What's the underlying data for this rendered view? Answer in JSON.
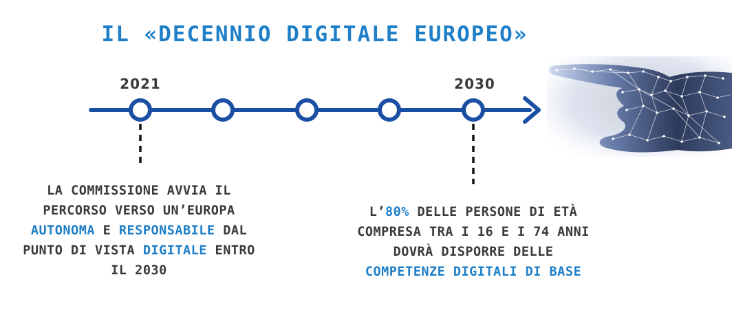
{
  "title": "IL «DECENNIO DIGITALE EUROPEO»",
  "timeline": {
    "years": [
      "2021",
      "2030"
    ],
    "milestone_count": 5
  },
  "left_text": {
    "part1": "LA COMMISSIONE AVVIA IL PERCORSO VERSO UN’EUROPA ",
    "hl1": "AUTONOMA",
    "part2": " E ",
    "hl2": "RESPONSABILE",
    "part3": " DAL PUNTO DI VISTA ",
    "hl3": "DIGITALE",
    "part4": " ENTRO IL 2030"
  },
  "right_text": {
    "part1": "L’",
    "hl1": "80%",
    "part2": " DELLE PERSONE DI ETÀ COMPRESA TRA I 16 E I 74 ANNI DOVRÀ DISPORRE DELLE ",
    "hl2": "COMPETENZE DIGITALI DI BASE"
  },
  "colors": {
    "title": "#1e7fc8",
    "timeline": "#1a4fa3",
    "text": "#3a3a3a",
    "highlight": "#1e7fc8"
  },
  "icons": [
    "digital-hand-illustration"
  ]
}
